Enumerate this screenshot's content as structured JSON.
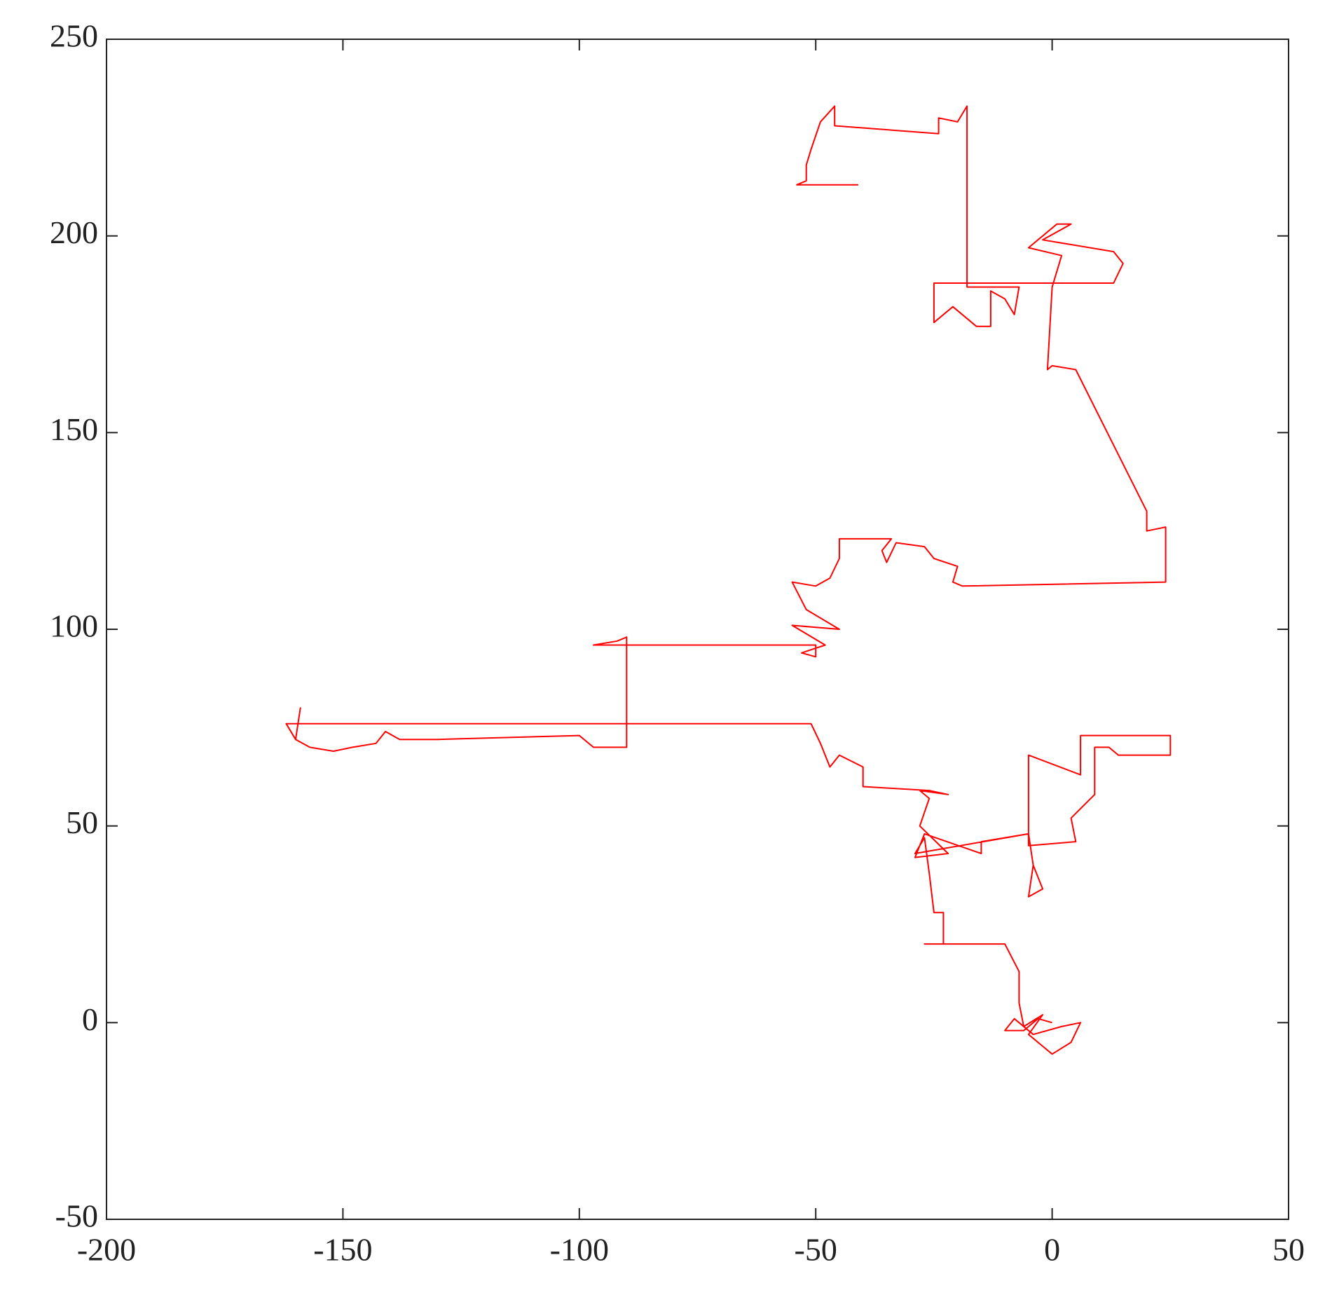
{
  "chart_data": {
    "type": "line",
    "color": "#ff0000",
    "x": [
      0,
      -3,
      -6,
      -10,
      -8,
      -4,
      2,
      6,
      4,
      0,
      -2,
      -5,
      -2,
      -6,
      -7,
      -7,
      -10,
      -27,
      -23,
      -23,
      -25,
      -26,
      -27,
      -29,
      -5,
      -4,
      -2,
      -5,
      -4,
      -5,
      -5,
      6,
      6,
      25,
      25,
      14,
      12,
      9,
      9,
      4,
      5,
      -5,
      -5,
      -15,
      -15,
      -27,
      -29,
      -22,
      -28,
      -26,
      -28,
      -22,
      -26,
      -40,
      -40,
      -45,
      -47,
      -49,
      -51,
      -162,
      -160,
      -159,
      -160,
      -157,
      -152,
      -148,
      -143,
      -141,
      -138,
      -130,
      -100,
      -97,
      -90,
      -90,
      -92,
      -97,
      -50,
      -50,
      -53,
      -48,
      -55,
      -45,
      -52,
      -55,
      -50,
      -47,
      -45,
      -45,
      -34,
      -36,
      -35,
      -33,
      -27,
      -25,
      -20,
      -21,
      -19,
      24,
      24,
      20,
      20,
      5,
      0,
      -1,
      0,
      2,
      -5,
      1,
      4,
      -2,
      13,
      15,
      13,
      -25,
      -25,
      -21,
      -16,
      -13,
      -13,
      -10,
      -8,
      -7,
      -18,
      -18,
      -20,
      -24,
      -24,
      -46,
      -46,
      -49,
      -51,
      -52,
      -52,
      -54,
      -41
    ],
    "values": [
      0,
      1,
      -2,
      -2,
      1,
      -3,
      -1,
      0,
      -5,
      -8,
      -6,
      -3,
      2,
      -1,
      5,
      13,
      20,
      20,
      20,
      28,
      28,
      38,
      47,
      43,
      48,
      40,
      34,
      32,
      40,
      48,
      68,
      63,
      73,
      73,
      68,
      68,
      70,
      70,
      58,
      52,
      46,
      45,
      48,
      46,
      43,
      48,
      42,
      43,
      50,
      57,
      59,
      58,
      59,
      60,
      65,
      68,
      65,
      71,
      76,
      76,
      72,
      80,
      72,
      70,
      69,
      70,
      71,
      74,
      72,
      72,
      73,
      70,
      70,
      98,
      97,
      96,
      96,
      93,
      94,
      96,
      101,
      100,
      105,
      112,
      111,
      113,
      118,
      123,
      123,
      120,
      117,
      122,
      121,
      118,
      116,
      112,
      111,
      112,
      126,
      125,
      130,
      166,
      167,
      166,
      187,
      195,
      197,
      203,
      203,
      199,
      196,
      193,
      188,
      188,
      178,
      182,
      177,
      177,
      186,
      184,
      180,
      187,
      187,
      233,
      229,
      230,
      226,
      228,
      233,
      229,
      222,
      218,
      214,
      213,
      213
    ],
    "xlim": [
      -200,
      50
    ],
    "xticks": [
      -200,
      -150,
      -100,
      -50,
      0,
      50
    ],
    "ylim": [
      -50,
      250
    ],
    "yticks": [
      -50,
      0,
      50,
      100,
      150,
      200,
      250
    ]
  }
}
